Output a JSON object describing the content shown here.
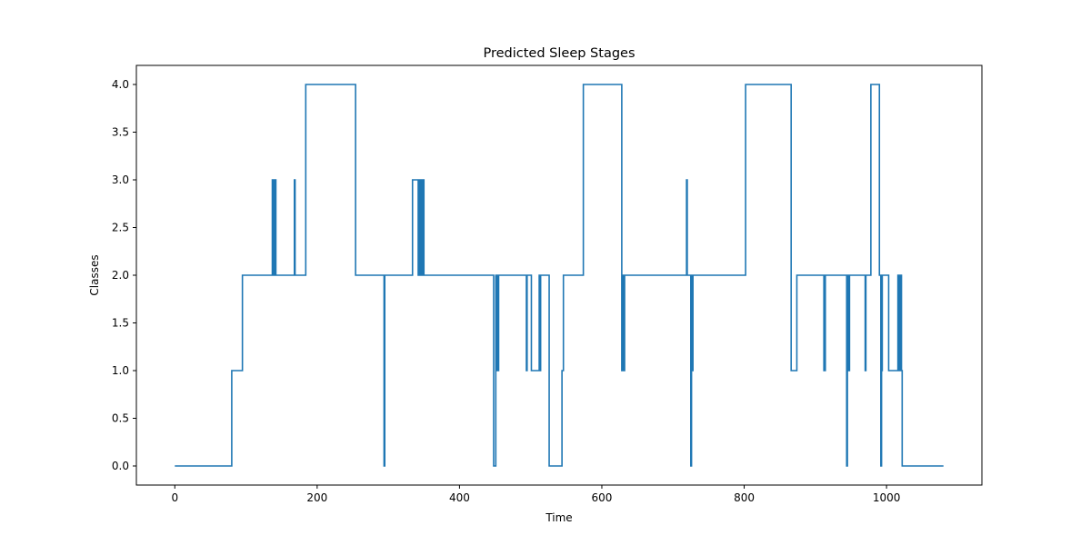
{
  "chart_data": {
    "type": "line",
    "title": "Predicted Sleep Stages",
    "xlabel": "Time",
    "ylabel": "Classes",
    "xlim": [
      -54,
      1134
    ],
    "ylim": [
      -0.2,
      4.2
    ],
    "xticks": [
      0,
      200,
      400,
      600,
      800,
      1000
    ],
    "xtick_labels": [
      "0",
      "200",
      "400",
      "600",
      "800",
      "1000"
    ],
    "yticks": [
      0,
      0.5,
      1,
      1.5,
      2,
      2.5,
      3,
      3.5,
      4
    ],
    "ytick_labels": [
      "0.0",
      "0.5",
      "1.0",
      "1.5",
      "2.0",
      "2.5",
      "3.0",
      "3.5",
      "4.0"
    ],
    "grid": false,
    "series_color": "#1f77b4",
    "series": [
      {
        "step": "post",
        "x": [
          0,
          80,
          95,
          137,
          138,
          139,
          140,
          141,
          142,
          144,
          168,
          169,
          170,
          182,
          184,
          252,
          254,
          293,
          294,
          295,
          296,
          334,
          342,
          343,
          345,
          346,
          347,
          348,
          350,
          446,
          448,
          451,
          452,
          453,
          454,
          455,
          456,
          494,
          495,
          500,
          501,
          512,
          513,
          514,
          515,
          520,
          526,
          528,
          544,
          546,
          548,
          574,
          627,
          628,
          629,
          630,
          632,
          719,
          720,
          721,
          724,
          725,
          726,
          727,
          728,
          730,
          802,
          866,
          868,
          874,
          912,
          914,
          920,
          944,
          945,
          946,
          948,
          970,
          971,
          972,
          978,
          990,
          992,
          993,
          994,
          996,
          1003,
          1004,
          1006,
          1016,
          1018,
          1020,
          1021,
          1022,
          1080
        ],
        "y": [
          0,
          1,
          2,
          3,
          2,
          3,
          2,
          3,
          2,
          2,
          3,
          2,
          2,
          2,
          4,
          4,
          2,
          2,
          0,
          2,
          2,
          3,
          2,
          3,
          2,
          3,
          2,
          3,
          2,
          2,
          0,
          2,
          1,
          2,
          1,
          2,
          2,
          1,
          2,
          2,
          1,
          2,
          1,
          2,
          2,
          2,
          0,
          0,
          1,
          2,
          2,
          4,
          4,
          1,
          2,
          1,
          2,
          3,
          2,
          2,
          2,
          0,
          2,
          1,
          2,
          2,
          4,
          1,
          1,
          2,
          1,
          2,
          2,
          0,
          2,
          1,
          2,
          1,
          2,
          2,
          4,
          2,
          0,
          1,
          2,
          2,
          1,
          1,
          1,
          2,
          1,
          2,
          1,
          0,
          0
        ]
      }
    ]
  }
}
